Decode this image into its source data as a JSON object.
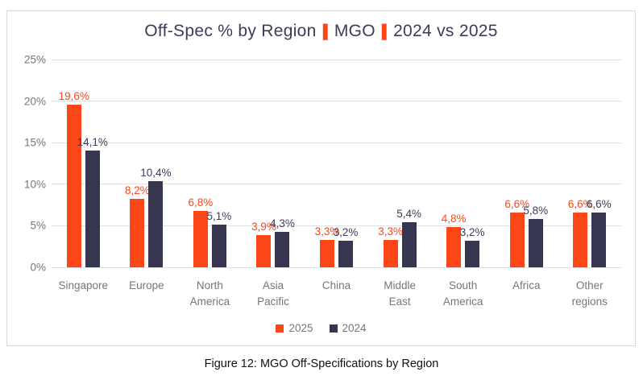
{
  "title": {
    "part1": "Off-Spec % by Region",
    "part2": "MGO",
    "part3": "2024 vs 2025",
    "separator": "|"
  },
  "chart_data": {
    "type": "bar",
    "title": "Off-Spec % by Region | MGO | 2024 vs 2025",
    "categories": [
      "Singapore",
      "Europe",
      "North America",
      "Asia Pacific",
      "China",
      "Middle East",
      "South America",
      "Africa",
      "Other regions"
    ],
    "series": [
      {
        "name": "2025",
        "color": "#FB4718",
        "label_color": "#FB4718",
        "values": [
          19.6,
          8.2,
          6.8,
          3.9,
          3.3,
          3.3,
          4.8,
          6.6,
          6.6
        ],
        "value_labels": [
          "19,6%",
          "8,2%",
          "6,8%",
          "3,9%",
          "3,3%",
          "3,3%",
          "4,8%",
          "6,6%",
          "6,6%"
        ]
      },
      {
        "name": "2024",
        "color": "#373651",
        "label_color": "#3C3B5A",
        "values": [
          14.1,
          10.4,
          5.1,
          4.3,
          3.2,
          5.4,
          3.2,
          5.8,
          6.6
        ],
        "value_labels": [
          "14,1%",
          "10,4%",
          "5,1%",
          "4,3%",
          "3,2%",
          "5,4%",
          "3,2%",
          "5,8%",
          "6,6%"
        ]
      }
    ],
    "xlabel": "",
    "ylabel": "",
    "ylim": [
      0,
      25
    ],
    "yticks": [
      "0%",
      "5%",
      "10%",
      "15%",
      "20%",
      "25%"
    ],
    "grid": true,
    "legend_position": "bottom",
    "decimal_separator": ","
  },
  "caption": "Figure 12: MGO Off-Specifications by Region",
  "colors": {
    "accent_orange": "#FB4718",
    "dark_navy": "#373651",
    "title_text": "#3C3B5A",
    "axis_text": "#76767B",
    "gridline": "#E2E2E6",
    "card_border": "#D9D9D9",
    "caption_text": "#111111",
    "background": "#FFFFFF"
  }
}
